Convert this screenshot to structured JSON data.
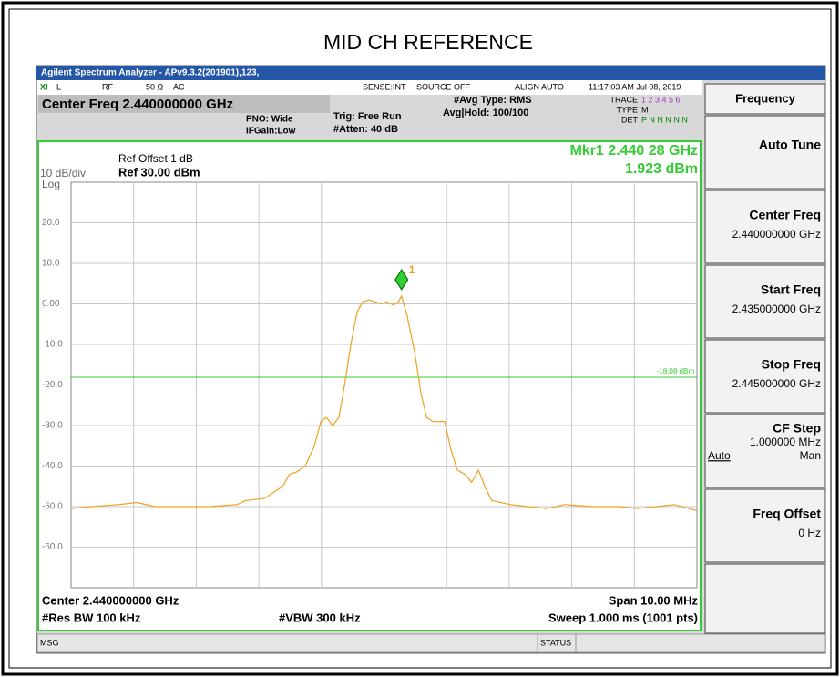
{
  "chart_data": {
    "type": "line",
    "title": "MID CH REFERENCE",
    "xlim": [
      2.435,
      2.445
    ],
    "ylim": [
      -70,
      30
    ],
    "yticks": [
      {
        "value": 20,
        "label": "20.0"
      },
      {
        "value": 10,
        "label": "10.0"
      },
      {
        "value": 0,
        "label": "0.00"
      },
      {
        "value": -10,
        "label": "-10.0"
      },
      {
        "value": -20,
        "label": "-20.0"
      },
      {
        "value": -30,
        "label": "-30.0"
      },
      {
        "value": -40,
        "label": "-40.0"
      },
      {
        "value": -50,
        "label": "-50.0"
      },
      {
        "value": -60,
        "label": "-60.0"
      }
    ],
    "grid": true,
    "color": "#f0a020",
    "x": [
      2.435,
      2.43532,
      2.43576,
      2.43605,
      2.43634,
      2.43678,
      2.43721,
      2.43765,
      2.43779,
      2.43809,
      2.43838,
      2.43849,
      2.4386,
      2.43874,
      2.43889,
      2.43899,
      2.43908,
      2.43918,
      2.43928,
      2.43937,
      2.43947,
      2.43957,
      2.43966,
      2.43976,
      2.43986,
      2.43995,
      2.44005,
      2.44015,
      2.44023,
      2.44028,
      2.44037,
      2.44049,
      2.44059,
      2.44068,
      2.44078,
      2.44097,
      2.44107,
      2.44117,
      2.44129,
      2.4414,
      2.44151,
      2.44161,
      2.44172,
      2.44202,
      2.44231,
      2.4426,
      2.44289,
      2.44333,
      2.44376,
      2.44405,
      2.44435,
      2.44464,
      2.445
    ],
    "values": [
      -50.5,
      -50,
      -49.5,
      -49,
      -50,
      -50,
      -50,
      -49.5,
      -48.5,
      -48,
      -45,
      -42,
      -41.5,
      -40,
      -35,
      -29,
      -28,
      -30,
      -28,
      -20,
      -10,
      -2,
      0.5,
      1,
      0.5,
      0,
      0.5,
      -0.3,
      0.5,
      1.923,
      -3,
      -12,
      -22,
      -28,
      -29,
      -29,
      -36,
      -41,
      -42,
      -44,
      -41,
      -45,
      -48.5,
      -49.5,
      -50,
      -50.5,
      -49.5,
      -50,
      -50,
      -50.5,
      -50,
      -49.5,
      -51
    ],
    "display_line": {
      "value": -18.08,
      "label": "-18.08 dBm"
    },
    "marker": {
      "x": 2.44028,
      "y": 1.923,
      "label": "1",
      "readout_x": "Mkr1 2.440 28 GHz",
      "readout_y": "1.923 dBm"
    },
    "ref_offset": "Ref Offset 1 dB",
    "scale": "10 dB/div",
    "ref_level": "Ref 30.00 dBm",
    "scale_type": "Log",
    "center": "Center 2.440000000 GHz",
    "span": "Span 10.00 MHz",
    "rbw": "#Res BW 100 kHz",
    "vbw": "#VBW 300 kHz",
    "sweep": "Sweep  1.000 ms (1001 pts)"
  },
  "window": {
    "title": "Agilent Spectrum Analyzer - APv9.3.2(201901),123,",
    "status": [
      "L",
      "RF",
      "50 Ω",
      "AC",
      "SENSE:INT",
      "SOURCE OFF",
      "ALIGN AUTO",
      "11:17:03 AM Jul 08, 2019"
    ],
    "avg_type": "#Avg Type: RMS",
    "avg_hold": "Avg|Hold: 100/100",
    "trace_label": "TRACE",
    "trace_nums": "1 2 3 4 5 6",
    "type_label": "TYPE",
    "type_val": "M",
    "det_label": "DET",
    "det_val": "P N N N N N",
    "center_freq": "Center Freq 2.440000000 GHz",
    "pno": "PNO: Wide",
    "ifgain": "IFGain:Low",
    "trig": "Trig: Free Run",
    "atten": "#Atten: 40 dB",
    "msg": "MSG",
    "status_label": "STATUS"
  },
  "softkeys": {
    "menu": "Frequency",
    "keys": [
      {
        "label": "Auto Tune"
      },
      {
        "label": "Center Freq",
        "value": "2.440000000 GHz"
      },
      {
        "label": "Start Freq",
        "value": "2.435000000 GHz"
      },
      {
        "label": "Stop Freq",
        "value": "2.445000000 GHz"
      },
      {
        "label": "CF Step",
        "value": "1.000000 MHz",
        "auto": "Auto",
        "man": "Man"
      },
      {
        "label": "Freq Offset",
        "value": "0 Hz"
      }
    ]
  }
}
